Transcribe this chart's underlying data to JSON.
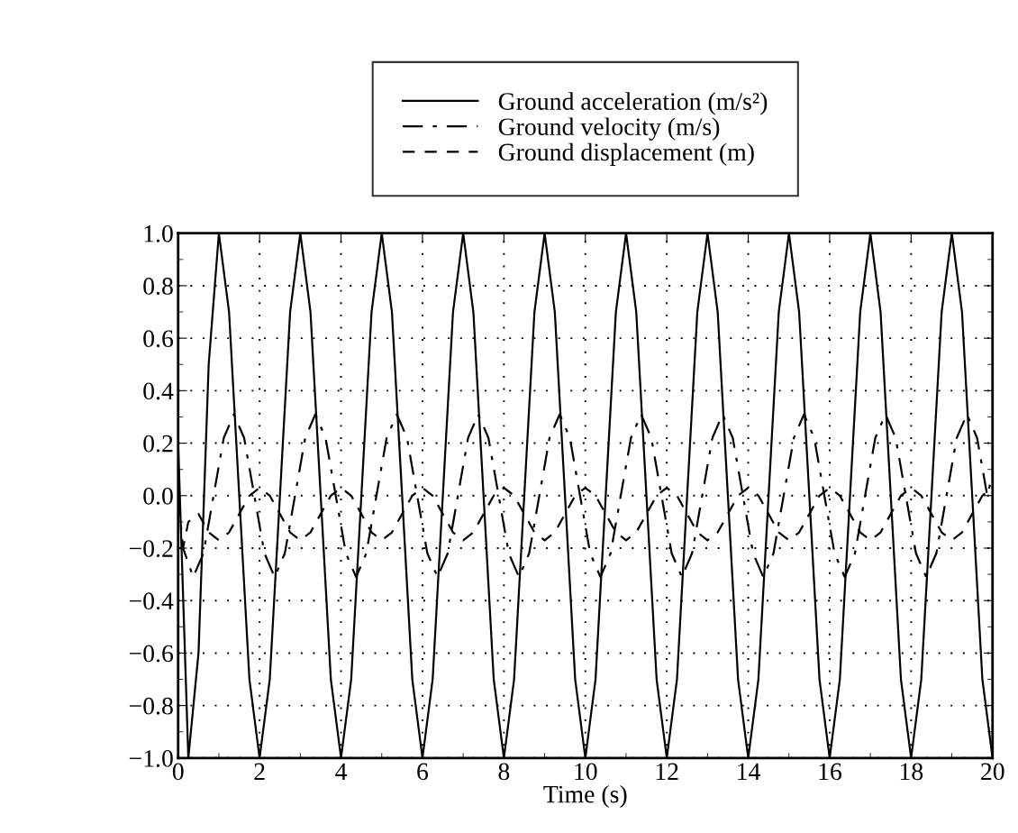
{
  "chart_data": {
    "type": "line",
    "xlabel": "Time (s)",
    "xlim": [
      0,
      20
    ],
    "ylim": [
      -1.0,
      1.0
    ],
    "xticks": [
      0,
      2,
      4,
      6,
      8,
      10,
      12,
      14,
      16,
      18,
      20
    ],
    "yticks": [
      {
        "value": -1.0,
        "label": "−1.0"
      },
      {
        "value": -0.8,
        "label": "−0.8"
      },
      {
        "value": -0.6,
        "label": "−0.6"
      },
      {
        "value": -0.4,
        "label": "−0.4"
      },
      {
        "value": -0.2,
        "label": "−0.2"
      },
      {
        "value": 0.0,
        "label": "0.0"
      },
      {
        "value": 0.2,
        "label": "0.2"
      },
      {
        "value": 0.4,
        "label": "0.4"
      },
      {
        "value": 0.6,
        "label": "0.6"
      },
      {
        "value": 0.8,
        "label": "0.8"
      },
      {
        "value": 1.0,
        "label": "1.0"
      }
    ],
    "grid": true,
    "legend": "top",
    "marker": "none",
    "series": [
      {
        "name": "Ground acceleration (m/s²)",
        "color": "#000000",
        "line_style": "solid",
        "x": [
          0,
          0.25,
          0.5,
          0.75,
          1,
          1.25,
          1.5,
          1.75,
          2,
          2.25,
          2.5,
          2.75,
          3,
          3.25,
          3.5,
          3.75,
          4,
          4.25,
          4.5,
          4.75,
          5,
          5.25,
          5.5,
          5.75,
          6,
          6.25,
          6.5,
          6.75,
          7,
          7.25,
          7.5,
          7.75,
          8,
          8.25,
          8.5,
          8.75,
          9,
          9.25,
          9.5,
          9.75,
          10,
          10.25,
          10.5,
          10.75,
          11,
          11.25,
          11.5,
          11.75,
          12,
          12.25,
          12.5,
          12.75,
          13,
          13.25,
          13.5,
          13.75,
          14,
          14.25,
          14.5,
          14.75,
          15,
          15.25,
          15.5,
          15.75,
          16,
          16.25,
          16.5,
          16.75,
          17,
          17.25,
          17.5,
          17.75,
          18,
          18.25,
          18.5,
          18.75,
          19,
          19.25,
          19.5,
          19.75,
          20
        ],
        "values": [
          0.2,
          -1,
          -0.6,
          0.5,
          1,
          0.7,
          0,
          -0.7,
          -1,
          -0.7,
          0,
          0.7,
          1,
          0.7,
          0,
          -0.7,
          -1,
          -0.7,
          0,
          0.7,
          1,
          0.7,
          0,
          -0.7,
          -1,
          -0.7,
          0,
          0.7,
          1,
          0.7,
          0,
          -0.7,
          -1,
          -0.7,
          0,
          0.7,
          1,
          0.7,
          0,
          -0.7,
          -1,
          -0.7,
          0,
          0.7,
          1,
          0.7,
          0,
          -0.7,
          -1,
          -0.7,
          0,
          0.7,
          1,
          0.7,
          0,
          -0.7,
          -1,
          -0.7,
          0,
          0.7,
          1,
          0.7,
          0,
          -0.7,
          -1,
          -0.7,
          0,
          0.7,
          1,
          0.7,
          0,
          -0.7,
          -1,
          -0.7,
          0,
          0.7,
          1,
          0.7,
          0,
          -0.7,
          -1
        ]
      },
      {
        "name": "Ground velocity (m/s)",
        "color": "#000000",
        "line_style": "dashdot",
        "x": [
          0,
          0.12,
          0.37,
          0.62,
          0.87,
          1.12,
          1.37,
          1.62,
          1.87,
          2.12,
          2.37,
          2.62,
          2.87,
          3.12,
          3.37,
          3.62,
          3.87,
          4.12,
          4.37,
          4.62,
          4.87,
          5.12,
          5.37,
          5.62,
          5.87,
          6.12,
          6.37,
          6.62,
          6.87,
          7.12,
          7.37,
          7.62,
          7.87,
          8.12,
          8.37,
          8.62,
          8.87,
          9.12,
          9.37,
          9.62,
          9.87,
          10.12,
          10.37,
          10.62,
          10.87,
          11.12,
          11.37,
          11.62,
          11.87,
          12.12,
          12.37,
          12.62,
          12.87,
          13.12,
          13.37,
          13.62,
          13.87,
          14.12,
          14.37,
          14.62,
          14.87,
          15.12,
          15.37,
          15.62,
          15.87,
          16.12,
          16.37,
          16.62,
          16.87,
          17.12,
          17.37,
          17.62,
          17.87,
          18.12,
          18.37,
          18.62,
          18.87,
          19.12,
          19.37,
          19.62,
          19.87,
          20
        ],
        "values": [
          0,
          -0.2,
          -0.31,
          -0.22,
          0,
          0.22,
          0.31,
          0.22,
          0,
          -0.22,
          -0.31,
          -0.22,
          0,
          0.22,
          0.31,
          0.22,
          0,
          -0.22,
          -0.31,
          -0.22,
          0,
          0.22,
          0.31,
          0.22,
          0,
          -0.22,
          -0.31,
          -0.22,
          0,
          0.22,
          0.31,
          0.22,
          0,
          -0.22,
          -0.31,
          -0.22,
          0,
          0.22,
          0.31,
          0.22,
          0,
          -0.22,
          -0.31,
          -0.22,
          0,
          0.22,
          0.31,
          0.22,
          0,
          -0.22,
          -0.31,
          -0.22,
          0,
          0.22,
          0.31,
          0.22,
          0,
          -0.22,
          -0.31,
          -0.22,
          0,
          0.22,
          0.31,
          0.22,
          0,
          -0.22,
          -0.31,
          -0.22,
          0,
          0.22,
          0.31,
          0.22,
          0,
          -0.22,
          -0.31,
          -0.22,
          0,
          0.22,
          0.31,
          0.22,
          0,
          0.08
        ]
      },
      {
        "name": "Ground displacement (m)",
        "color": "#000000",
        "line_style": "dashed",
        "x": [
          0,
          0.12,
          0.25,
          0.5,
          0.75,
          1,
          1.25,
          1.5,
          1.75,
          2,
          2.25,
          2.5,
          2.75,
          3,
          3.25,
          3.5,
          3.75,
          4,
          4.25,
          4.5,
          4.75,
          5,
          5.25,
          5.5,
          5.75,
          6,
          6.25,
          6.5,
          6.75,
          7,
          7.25,
          7.5,
          7.75,
          8,
          8.25,
          8.5,
          8.75,
          9,
          9.25,
          9.5,
          9.75,
          10,
          10.25,
          10.5,
          10.75,
          11,
          11.25,
          11.5,
          11.75,
          12,
          12.25,
          12.5,
          12.75,
          13,
          13.25,
          13.5,
          13.75,
          14,
          14.25,
          14.5,
          14.75,
          15,
          15.25,
          15.5,
          15.75,
          16,
          16.25,
          16.5,
          16.75,
          17,
          17.25,
          17.5,
          17.75,
          18,
          18.25,
          18.5,
          18.75,
          19,
          19.25,
          19.5,
          19.75,
          20
        ],
        "values": [
          -0.2,
          -0.2,
          -0.1,
          -0.07,
          -0.14,
          -0.17,
          -0.14,
          -0.07,
          0,
          0.03,
          0,
          -0.07,
          -0.14,
          -0.17,
          -0.14,
          -0.07,
          0,
          0.03,
          0,
          -0.07,
          -0.14,
          -0.17,
          -0.14,
          -0.07,
          0,
          0.03,
          0,
          -0.07,
          -0.14,
          -0.17,
          -0.14,
          -0.07,
          0,
          0.03,
          0,
          -0.07,
          -0.14,
          -0.17,
          -0.14,
          -0.07,
          0,
          0.03,
          0,
          -0.07,
          -0.14,
          -0.17,
          -0.14,
          -0.07,
          0,
          0.03,
          0,
          -0.07,
          -0.14,
          -0.17,
          -0.14,
          -0.07,
          0,
          0.03,
          0,
          -0.07,
          -0.14,
          -0.17,
          -0.14,
          -0.07,
          0,
          0.03,
          0,
          -0.07,
          -0.14,
          -0.17,
          -0.14,
          -0.07,
          0,
          0.03,
          0,
          -0.07,
          -0.14,
          -0.17,
          -0.14,
          -0.07,
          0,
          0.03
        ]
      }
    ]
  }
}
